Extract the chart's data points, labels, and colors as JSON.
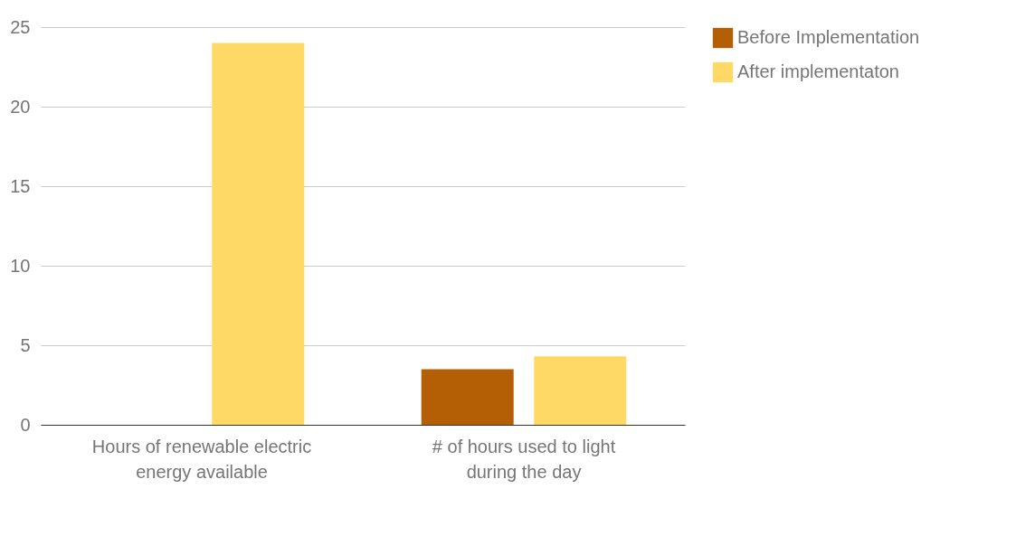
{
  "chart_data": {
    "type": "bar",
    "categories": [
      "Hours of renewable electric energy available",
      "# of hours used to light during the day"
    ],
    "series": [
      {
        "name": "Before Implementation",
        "color": "#b45f06",
        "values": [
          0,
          3.5
        ]
      },
      {
        "name": "After implementaton",
        "color": "#ffd966",
        "values": [
          24,
          4.3
        ]
      }
    ],
    "ylim": [
      0,
      25
    ],
    "yticks": [
      0,
      5,
      10,
      15,
      20,
      25
    ],
    "grid": "y",
    "legend": "top right"
  }
}
